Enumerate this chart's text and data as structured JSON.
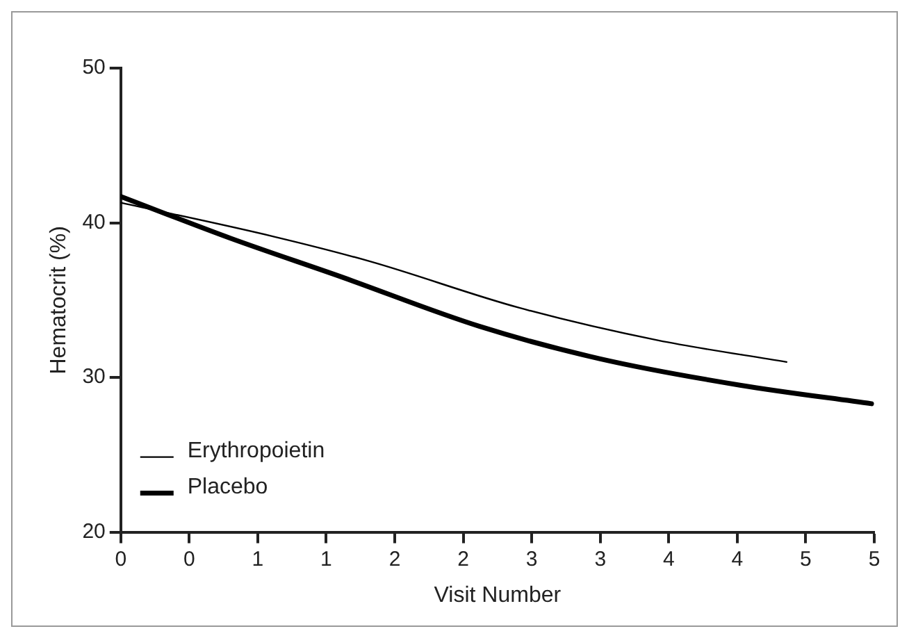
{
  "chart_data": {
    "type": "line",
    "xlabel": "Visit Number",
    "ylabel": "Hematocrit (%)",
    "xlim": [
      0,
      5.5
    ],
    "xticks": [
      0,
      {
        "value": 0.5,
        "label": "0"
      },
      1,
      {
        "value": 1.5,
        "label": "1"
      },
      2,
      {
        "value": 2.5,
        "label": "2"
      },
      3,
      {
        "value": 3.5,
        "label": "3"
      },
      4,
      {
        "value": 4.5,
        "label": "4"
      },
      5,
      {
        "value": 5.5,
        "label": "5"
      }
    ],
    "ylim": [
      20,
      50
    ],
    "yticks": [
      20,
      30,
      40,
      50
    ],
    "grid": false,
    "legend": "bottom left",
    "line_style": "solid",
    "series": [
      {
        "name": "Erythropoietin",
        "color": "#000000",
        "x": [
          0,
          1.12,
          1.82,
          2.91,
          3.92,
          4.86
        ],
        "values": [
          41.3,
          39.1,
          37.5,
          34.5,
          32.4,
          31.0
        ]
      },
      {
        "name": "Placebo",
        "color": "#000000",
        "x": [
          0,
          0.8,
          1.61,
          2.62,
          3.5,
          4.52,
          5.48
        ],
        "values": [
          41.7,
          39.0,
          36.5,
          33.3,
          31.2,
          29.5,
          28.3
        ]
      }
    ]
  }
}
